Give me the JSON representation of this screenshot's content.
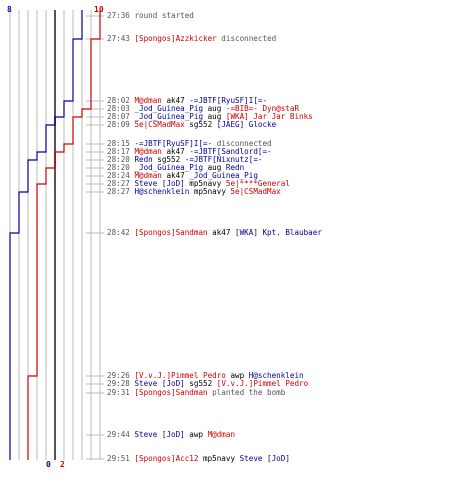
{
  "score": {
    "blue_start": "8",
    "red_start": "10",
    "blue_end": "0",
    "red_end": "2"
  },
  "colors": {
    "red": "#cc0000",
    "blue": "#000099",
    "gray": "#555555",
    "grid": "#bbbbbb",
    "axis": "#555555"
  },
  "events": [
    {
      "time": "27:36",
      "segs": [
        {
          "text": "round started",
          "c": "g"
        }
      ]
    },
    {
      "time": "27:43",
      "segs": [
        {
          "text": "[Spongos]Azzkicker",
          "c": "r"
        },
        {
          "text": " disconnected",
          "c": "g"
        }
      ]
    },
    {
      "time": "28:02",
      "segs": [
        {
          "text": "M@dman",
          "c": "r"
        },
        {
          "text": " ak47 ",
          "c": "k"
        },
        {
          "text": "-=JBTF[RyuSF]I[=-",
          "c": "b"
        }
      ]
    },
    {
      "time": "28:03",
      "segs": [
        {
          "text": "_Jod_Guinea_Pig",
          "c": "b"
        },
        {
          "text": " aug ",
          "c": "k"
        },
        {
          "text": "-=BIB=- Dyn@staR",
          "c": "r"
        }
      ]
    },
    {
      "time": "28:07",
      "segs": [
        {
          "text": "_Jod_Guinea_Pig",
          "c": "b"
        },
        {
          "text": " aug ",
          "c": "k"
        },
        {
          "text": "[WKA] Jar Jar Binks",
          "c": "r"
        }
      ]
    },
    {
      "time": "28:09",
      "segs": [
        {
          "text": "5e|CSMadMax",
          "c": "r"
        },
        {
          "text": " sg552 ",
          "c": "k"
        },
        {
          "text": "[JAEG] Glocke",
          "c": "b"
        }
      ]
    },
    {
      "time": "28:15",
      "segs": [
        {
          "text": "-=JBTF[RyuSF]I[=-",
          "c": "b"
        },
        {
          "text": " disconnected",
          "c": "g"
        }
      ]
    },
    {
      "time": "28:17",
      "segs": [
        {
          "text": "M@dman",
          "c": "r"
        },
        {
          "text": " ak47 ",
          "c": "k"
        },
        {
          "text": "-=JBTF[Sandlord[=-",
          "c": "b"
        }
      ]
    },
    {
      "time": "28:20",
      "segs": [
        {
          "text": "Redn",
          "c": "b"
        },
        {
          "text": " sg552 ",
          "c": "k"
        },
        {
          "text": "-=JBTF[Nixnutz[=-",
          "c": "b"
        }
      ]
    },
    {
      "time": "28:20",
      "segs": [
        {
          "text": "_Jod_Guinea_Pig",
          "c": "b"
        },
        {
          "text": " aug ",
          "c": "k"
        },
        {
          "text": "Redn",
          "c": "b"
        }
      ]
    },
    {
      "time": "28:24",
      "segs": [
        {
          "text": "M@dman",
          "c": "r"
        },
        {
          "text": " ak47 ",
          "c": "k"
        },
        {
          "text": "_Jod_Guinea_Pig",
          "c": "b"
        }
      ]
    },
    {
      "time": "28:27",
      "segs": [
        {
          "text": "Steve [JoD]",
          "c": "b"
        },
        {
          "text": " mp5navy ",
          "c": "k"
        },
        {
          "text": "5e|****General",
          "c": "r"
        }
      ]
    },
    {
      "time": "28:27",
      "segs": [
        {
          "text": "H@schenklein",
          "c": "b"
        },
        {
          "text": " mp5navy ",
          "c": "k"
        },
        {
          "text": "5e|CSMadMax",
          "c": "r"
        }
      ]
    },
    {
      "time": "28:42",
      "segs": [
        {
          "text": "[Spongos]Sandman",
          "c": "r"
        },
        {
          "text": " ak47 ",
          "c": "k"
        },
        {
          "text": "[WKA] Kpt. Blaubaer",
          "c": "b"
        }
      ]
    },
    {
      "time": "29:26",
      "segs": [
        {
          "text": "[V.v.J.]Pimmel Pedro",
          "c": "r"
        },
        {
          "text": " awp ",
          "c": "k"
        },
        {
          "text": "H@schenklein",
          "c": "b"
        }
      ]
    },
    {
      "time": "29:28",
      "segs": [
        {
          "text": "Steve [JoD]",
          "c": "b"
        },
        {
          "text": " sg552 ",
          "c": "k"
        },
        {
          "text": "[V.v.J.]Pimmel Pedro",
          "c": "r"
        }
      ]
    },
    {
      "time": "29:31",
      "segs": [
        {
          "text": "[Spongos]Sandman",
          "c": "r"
        },
        {
          "text": " planted the bomb",
          "c": "g"
        }
      ]
    },
    {
      "time": "29:44",
      "segs": [
        {
          "text": "Steve [JoD]",
          "c": "b"
        },
        {
          "text": " awp ",
          "c": "k"
        },
        {
          "text": "M@dman",
          "c": "r"
        }
      ]
    },
    {
      "time": "29:51",
      "segs": [
        {
          "text": "[Spongos]Acc12",
          "c": "r"
        },
        {
          "text": " mp5navy ",
          "c": "k"
        },
        {
          "text": "Steve [JoD]",
          "c": "b"
        }
      ]
    }
  ],
  "chart_data": {
    "type": "line",
    "x_unit": "players alive (0-10)",
    "xlim": [
      0,
      10
    ],
    "series": [
      {
        "color": "#000099",
        "steps": [
          8,
          8,
          7,
          6,
          6,
          5,
          4,
          4,
          3,
          2,
          2,
          2,
          2,
          1,
          0,
          0,
          0,
          0,
          0,
          0,
          0
        ]
      },
      {
        "color": "#cc0000",
        "steps": [
          10,
          10,
          9,
          9,
          8,
          7,
          7,
          6,
          5,
          5,
          4,
          4,
          3,
          3,
          3,
          2,
          2,
          2,
          2,
          2,
          2
        ]
      }
    ]
  }
}
